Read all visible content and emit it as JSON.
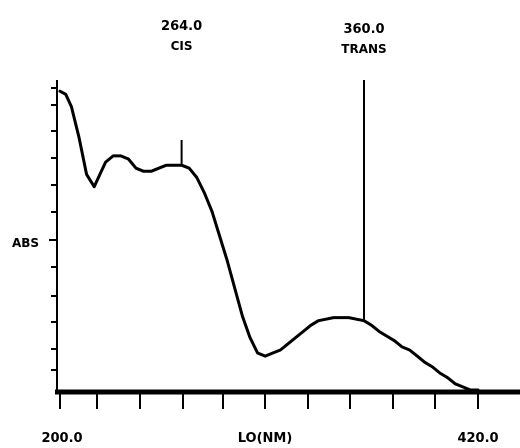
{
  "chart_data": {
    "type": "line",
    "ylabel": "ABS",
    "xlabel": "LO(NM)",
    "x_tick_labels": [
      "200.0",
      "420.0"
    ],
    "xlim": [
      200,
      420
    ],
    "grid": false,
    "series": [
      {
        "x": [
          200,
          203,
          206,
          210,
          214,
          218,
          221,
          224,
          228,
          232,
          236,
          240,
          244,
          248,
          252,
          256,
          260,
          264,
          268,
          272,
          276,
          280,
          284,
          288,
          292,
          296,
          300,
          304,
          308,
          312,
          316,
          320,
          324,
          328,
          332,
          336,
          340,
          344,
          348,
          352,
          356,
          360,
          364,
          368,
          372,
          376,
          380,
          384,
          388,
          392,
          396,
          400,
          404,
          408,
          412,
          416,
          420
        ],
        "y": [
          0.97,
          0.96,
          0.92,
          0.82,
          0.7,
          0.66,
          0.7,
          0.74,
          0.76,
          0.76,
          0.75,
          0.72,
          0.71,
          0.71,
          0.72,
          0.73,
          0.73,
          0.73,
          0.72,
          0.69,
          0.64,
          0.58,
          0.5,
          0.42,
          0.33,
          0.24,
          0.17,
          0.12,
          0.11,
          0.12,
          0.13,
          0.15,
          0.17,
          0.19,
          0.21,
          0.225,
          0.23,
          0.235,
          0.235,
          0.235,
          0.23,
          0.225,
          0.21,
          0.19,
          0.175,
          0.16,
          0.14,
          0.13,
          0.11,
          0.09,
          0.075,
          0.055,
          0.04,
          0.02,
          0.01,
          0.0,
          0.0
        ]
      }
    ],
    "annotations": [
      {
        "x": 264,
        "value": "264.0",
        "label": "CIS"
      },
      {
        "x": 360,
        "value": "360.0",
        "label": "TRANS"
      }
    ]
  }
}
